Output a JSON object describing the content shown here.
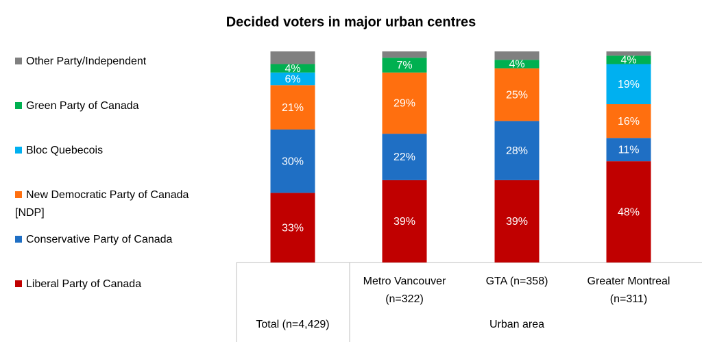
{
  "chart_data": {
    "type": "stacked_bar",
    "title": "Decided voters in major urban centres",
    "categories": [
      "Total (n=4,429)",
      "Metro Vancouver (n=322)",
      "GTA (n=358)",
      "Greater Montreal (n=311)"
    ],
    "group_label": "Urban area",
    "ylim": [
      0,
      100
    ],
    "series": [
      {
        "name": "Liberal Party of Canada",
        "color": "#c00000",
        "values": [
          33,
          39,
          39,
          48
        ],
        "value_labels": [
          "33%",
          "39%",
          "39%",
          "48%"
        ]
      },
      {
        "name": "Conservative Party of Canada",
        "color": "#1f6fc4",
        "values": [
          30,
          22,
          28,
          11
        ],
        "value_labels": [
          "30%",
          "22%",
          "28%",
          "11%"
        ]
      },
      {
        "name": "New Democratic Party of Canada [NDP]",
        "color": "#ff6f0f",
        "values": [
          21,
          29,
          25,
          16
        ],
        "value_labels": [
          "21%",
          "29%",
          "25%",
          "16%"
        ]
      },
      {
        "name": "Bloc Quebecois",
        "color": "#00b0f0",
        "values": [
          6,
          null,
          null,
          19
        ],
        "value_labels": [
          "6%",
          null,
          null,
          "19%"
        ]
      },
      {
        "name": "Green Party of Canada",
        "color": "#00b050",
        "values": [
          4,
          7,
          4,
          4
        ],
        "value_labels": [
          "4%",
          "7%",
          "4%",
          "4%"
        ]
      },
      {
        "name": "Other Party/Independent",
        "color": "#808080",
        "values": [
          6,
          3,
          4,
          2
        ]
      }
    ]
  }
}
